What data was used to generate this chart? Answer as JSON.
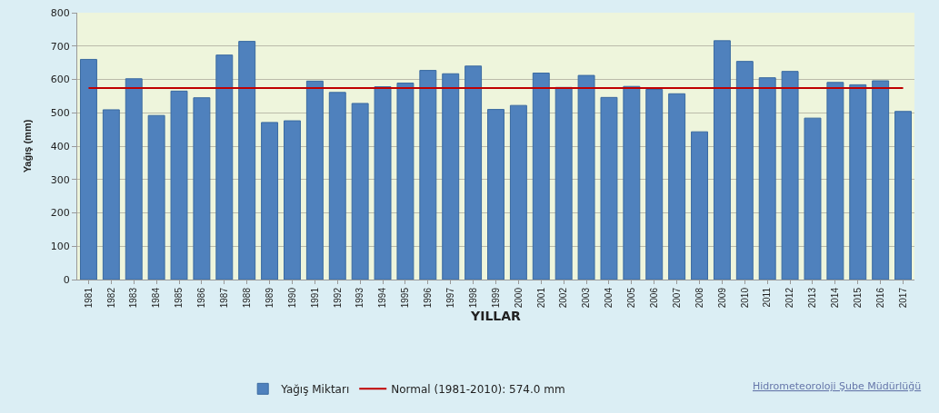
{
  "chart_data": {
    "type": "bar",
    "xlabel": "YILLAR",
    "ylabel": "Yağış (mm)",
    "categories": [
      "1981",
      "1982",
      "1983",
      "1984",
      "1985",
      "1986",
      "1987",
      "1988",
      "1989",
      "1990",
      "1991",
      "1992",
      "1993",
      "1994",
      "1995",
      "1996",
      "1997",
      "1998",
      "1999",
      "2000",
      "2001",
      "2002",
      "2003",
      "2004",
      "2005",
      "2006",
      "2007",
      "2008",
      "2009",
      "2010",
      "2011",
      "2012",
      "2013",
      "2014",
      "2015",
      "2016",
      "2017"
    ],
    "series": [
      {
        "name": "Yağış Miktarı",
        "color": "#4f81bd",
        "values": [
          660,
          509,
          602,
          492,
          565,
          545,
          673,
          714,
          471,
          476,
          595,
          561,
          528,
          578,
          589,
          627,
          617,
          640,
          510,
          522,
          619,
          576,
          612,
          546,
          579,
          570,
          557,
          443,
          716,
          654,
          605,
          624,
          484,
          591,
          584,
          596,
          504
        ]
      }
    ],
    "ref_lines": [
      {
        "axis": "y",
        "value": 574,
        "label": "Normal (1981-2010): 574.0 mm",
        "color": "#c00000",
        "line_style": "solid"
      }
    ],
    "ylim": [
      0,
      800
    ],
    "yticks": [
      0,
      100,
      200,
      300,
      400,
      500,
      600,
      700,
      800
    ],
    "grid": "y",
    "legend": "bottom",
    "annotations": [
      "Hidrometeoroloji Şube Müdürlüğü"
    ]
  }
}
